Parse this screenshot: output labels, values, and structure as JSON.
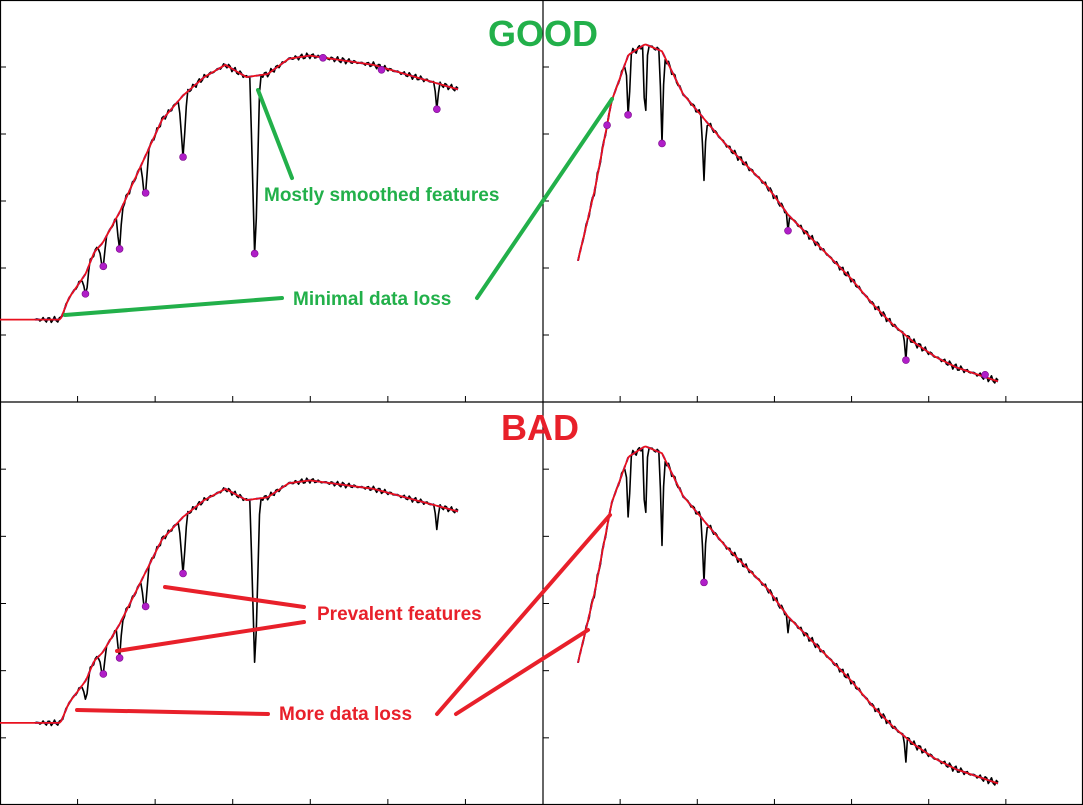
{
  "headers": {
    "good": "GOOD",
    "bad": "BAD"
  },
  "annotations": {
    "good_smoothed": "Mostly smoothed features",
    "good_loss": "Minimal data loss",
    "bad_features": "Prevalent features",
    "bad_loss": "More data loss"
  },
  "colors": {
    "spectrum": "#000000",
    "fit_blue_dashed": "#1f2fd0",
    "fit_red": "#e8101e",
    "points": "#b01ec8",
    "good": "#22b04a",
    "bad": "#e8202a"
  },
  "chart_data": [
    {
      "type": "line",
      "panel": "good-left",
      "xlim": [
        0,
        1
      ],
      "ylim": [
        0,
        1
      ],
      "grid": false,
      "series": [
        {
          "role": "spectrum",
          "x": [
            0,
            0.06,
            0.08,
            0.1,
            0.12,
            0.14,
            0.16,
            0.18,
            0.2,
            0.25,
            0.3,
            0.35,
            0.4,
            0.45,
            0.5,
            0.55,
            0.6,
            0.65,
            0.7,
            0.75,
            0.8,
            0.85,
            0.9,
            0.95,
            1.0
          ],
          "y": [
            0.05,
            0.05,
            0.12,
            0.16,
            0.2,
            0.27,
            0.3,
            0.35,
            0.4,
            0.55,
            0.7,
            0.78,
            0.84,
            0.88,
            0.84,
            0.85,
            0.9,
            0.91,
            0.9,
            0.89,
            0.88,
            0.86,
            0.84,
            0.82,
            0.8
          ]
        }
      ],
      "points": [
        0.12,
        0.16,
        0.2,
        0.26,
        0.35,
        0.52,
        0.68,
        0.82,
        0.95
      ]
    },
    {
      "type": "line",
      "panel": "good-right",
      "xlim": [
        0,
        1
      ],
      "ylim": [
        0,
        1
      ],
      "grid": false,
      "series": [
        {
          "role": "spectrum",
          "x": [
            0,
            0.04,
            0.08,
            0.12,
            0.16,
            0.2,
            0.25,
            0.3,
            0.35,
            0.4,
            0.45,
            0.5,
            0.55,
            0.6,
            0.65,
            0.7,
            0.75,
            0.8,
            0.85,
            0.9,
            0.95,
            1.0
          ],
          "y": [
            0.35,
            0.55,
            0.8,
            0.93,
            0.96,
            0.94,
            0.82,
            0.75,
            0.68,
            0.62,
            0.56,
            0.48,
            0.42,
            0.36,
            0.3,
            0.23,
            0.17,
            0.12,
            0.08,
            0.05,
            0.03,
            0.01
          ]
        }
      ],
      "points": [
        0.07,
        0.12,
        0.2,
        0.5,
        0.78,
        0.97
      ]
    },
    {
      "type": "line",
      "panel": "bad-left",
      "xlim": [
        0,
        1
      ],
      "ylim": [
        0,
        1
      ],
      "grid": false,
      "series": [
        {
          "role": "spectrum",
          "x": [
            0,
            0.06,
            0.08,
            0.1,
            0.12,
            0.14,
            0.16,
            0.18,
            0.2,
            0.25,
            0.3,
            0.35,
            0.4,
            0.45,
            0.5,
            0.55,
            0.6,
            0.65,
            0.7,
            0.75,
            0.8,
            0.85,
            0.9,
            0.95,
            1.0
          ],
          "y": [
            0.05,
            0.05,
            0.12,
            0.16,
            0.2,
            0.27,
            0.3,
            0.35,
            0.4,
            0.55,
            0.7,
            0.78,
            0.84,
            0.88,
            0.84,
            0.85,
            0.9,
            0.91,
            0.9,
            0.89,
            0.88,
            0.86,
            0.84,
            0.82,
            0.8
          ]
        }
      ],
      "points": [
        0.16,
        0.2,
        0.26,
        0.35
      ]
    },
    {
      "type": "line",
      "panel": "bad-right",
      "xlim": [
        0,
        1
      ],
      "ylim": [
        0,
        1
      ],
      "grid": false,
      "series": [
        {
          "role": "spectrum",
          "x": [
            0,
            0.04,
            0.08,
            0.12,
            0.16,
            0.2,
            0.25,
            0.3,
            0.35,
            0.4,
            0.45,
            0.5,
            0.55,
            0.6,
            0.65,
            0.7,
            0.75,
            0.8,
            0.85,
            0.9,
            0.95,
            1.0
          ],
          "y": [
            0.35,
            0.55,
            0.8,
            0.93,
            0.96,
            0.94,
            0.82,
            0.75,
            0.68,
            0.62,
            0.56,
            0.48,
            0.42,
            0.36,
            0.3,
            0.23,
            0.17,
            0.12,
            0.08,
            0.05,
            0.03,
            0.01
          ]
        }
      ],
      "points": [
        0.3
      ]
    }
  ]
}
